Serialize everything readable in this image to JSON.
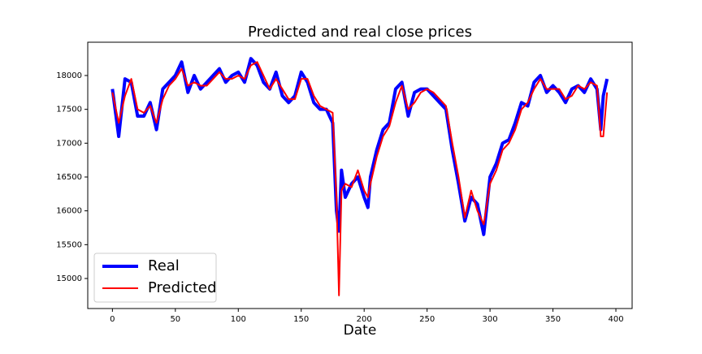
{
  "chart_data": {
    "type": "line",
    "title": "Predicted and real close prices",
    "x_label": "Date",
    "x": [
      0,
      5,
      10,
      15,
      20,
      25,
      30,
      35,
      40,
      45,
      50,
      55,
      60,
      65,
      70,
      75,
      80,
      85,
      90,
      95,
      100,
      105,
      110,
      115,
      120,
      125,
      130,
      135,
      140,
      145,
      150,
      155,
      160,
      165,
      170,
      175,
      178,
      180,
      182,
      185,
      190,
      195,
      200,
      203,
      205,
      210,
      215,
      220,
      225,
      230,
      235,
      240,
      245,
      250,
      255,
      260,
      265,
      270,
      275,
      280,
      285,
      290,
      295,
      300,
      305,
      310,
      315,
      320,
      325,
      330,
      335,
      340,
      345,
      350,
      355,
      360,
      365,
      370,
      375,
      380,
      385,
      388,
      390,
      393
    ],
    "series": [
      {
        "name": "Real",
        "color": "#0000ff",
        "width": 4,
        "values": [
          17800,
          17100,
          17950,
          17900,
          17400,
          17400,
          17600,
          17200,
          17800,
          17900,
          18000,
          18200,
          17750,
          18000,
          17800,
          17900,
          18000,
          18100,
          17900,
          18000,
          18050,
          17900,
          18250,
          18150,
          17900,
          17800,
          18050,
          17700,
          17600,
          17700,
          18050,
          17900,
          17600,
          17500,
          17500,
          17300,
          16000,
          15700,
          16600,
          16200,
          16400,
          16500,
          16200,
          16050,
          16500,
          16900,
          17200,
          17300,
          17800,
          17900,
          17400,
          17750,
          17800,
          17800,
          17700,
          17600,
          17500,
          16900,
          16400,
          15850,
          16200,
          16100,
          15650,
          16500,
          16700,
          17000,
          17050,
          17300,
          17600,
          17550,
          17900,
          18000,
          17750,
          17850,
          17750,
          17600,
          17800,
          17850,
          17750,
          17950,
          17800,
          17200,
          17700,
          17950
        ]
      },
      {
        "name": "Predicted",
        "color": "#ff0000",
        "width": 2,
        "values": [
          17750,
          17300,
          17700,
          17950,
          17500,
          17450,
          17550,
          17300,
          17650,
          17850,
          17950,
          18100,
          17850,
          17900,
          17850,
          17850,
          17950,
          18050,
          17950,
          17950,
          18000,
          17950,
          18150,
          18200,
          18000,
          17800,
          17950,
          17800,
          17650,
          17650,
          17950,
          17950,
          17700,
          17550,
          17500,
          17450,
          16200,
          14750,
          16300,
          16400,
          16350,
          16600,
          16300,
          16200,
          16400,
          16800,
          17100,
          17250,
          17600,
          17850,
          17500,
          17600,
          17750,
          17800,
          17750,
          17650,
          17550,
          17000,
          16500,
          15900,
          16300,
          16000,
          15800,
          16400,
          16600,
          16900,
          17000,
          17200,
          17500,
          17600,
          17800,
          17950,
          17800,
          17800,
          17800,
          17650,
          17700,
          17850,
          17800,
          17900,
          17850,
          17100,
          17100,
          17750
        ]
      }
    ],
    "xlim": [
      -19.6,
      412.9
    ],
    "ylim": [
      14556,
      18492
    ],
    "xticks": [
      0,
      50,
      100,
      150,
      200,
      250,
      300,
      350,
      400
    ],
    "yticks": [
      15000,
      15500,
      16000,
      16500,
      17000,
      17500,
      18000
    ],
    "legend": "lower left"
  }
}
